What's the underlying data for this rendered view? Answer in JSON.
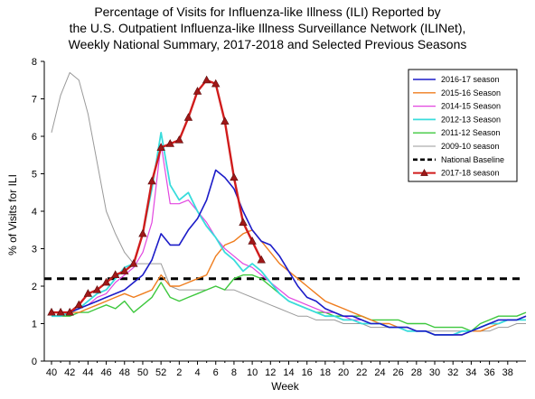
{
  "chart_data": {
    "type": "line",
    "title_lines": [
      "Percentage of Visits for Influenza-like Illness (ILI) Reported by",
      "the U.S. Outpatient Influenza-like Illness Surveillance Network (ILINet),",
      "Weekly National Summary, 2017-2018 and Selected Previous Seasons"
    ],
    "xlabel": "Week",
    "ylabel": "% of Visits for ILI",
    "ylim": [
      0,
      8
    ],
    "yticks": [
      0,
      1,
      2,
      3,
      4,
      5,
      6,
      7,
      8
    ],
    "x_tick_labels": [
      "40",
      "42",
      "44",
      "46",
      "48",
      "50",
      "52",
      "2",
      "4",
      "6",
      "8",
      "10",
      "12",
      "14",
      "16",
      "18",
      "20",
      "22",
      "24",
      "26",
      "28",
      "30",
      "32",
      "34",
      "36",
      "38"
    ],
    "x_point_count": 53,
    "grid": false,
    "legend_position": "top-right",
    "baseline": {
      "name": "National Baseline",
      "value": 2.2,
      "color": "#000000"
    },
    "series": [
      {
        "name": "2016-17 season",
        "color": "#1c1cc8",
        "width": 1.6,
        "markers": false,
        "values": [
          1.3,
          1.3,
          1.3,
          1.4,
          1.5,
          1.6,
          1.7,
          1.8,
          1.9,
          2.1,
          2.3,
          2.7,
          3.4,
          3.1,
          3.1,
          3.5,
          3.8,
          4.3,
          5.1,
          4.9,
          4.6,
          4.0,
          3.5,
          3.2,
          3.1,
          2.8,
          2.4,
          2.0,
          1.7,
          1.6,
          1.4,
          1.3,
          1.2,
          1.2,
          1.1,
          1.0,
          1.0,
          0.9,
          0.9,
          0.9,
          0.8,
          0.8,
          0.7,
          0.7,
          0.7,
          0.7,
          0.8,
          0.9,
          1.0,
          1.1,
          1.1,
          1.1,
          1.2
        ]
      },
      {
        "name": "2015-16 Season",
        "color": "#ef7d1e",
        "width": 1.4,
        "markers": false,
        "values": [
          1.2,
          1.2,
          1.3,
          1.3,
          1.4,
          1.5,
          1.6,
          1.7,
          1.8,
          1.7,
          1.8,
          1.9,
          2.3,
          2.0,
          2.0,
          2.1,
          2.2,
          2.3,
          2.8,
          3.1,
          3.2,
          3.4,
          3.5,
          3.2,
          2.9,
          2.6,
          2.4,
          2.2,
          2.0,
          1.8,
          1.6,
          1.5,
          1.4,
          1.3,
          1.2,
          1.1,
          1.0,
          1.0,
          0.9,
          0.9,
          0.8,
          0.8,
          0.7,
          0.7,
          0.7,
          0.7,
          0.8,
          0.8,
          0.9,
          1.0,
          1.1,
          1.1,
          1.2
        ]
      },
      {
        "name": "2014-15 Season",
        "color": "#e246e0",
        "width": 1.2,
        "markers": false,
        "values": [
          1.3,
          1.3,
          1.3,
          1.4,
          1.5,
          1.7,
          1.8,
          2.1,
          2.3,
          2.5,
          2.9,
          3.7,
          5.8,
          4.2,
          4.2,
          4.3,
          4.0,
          3.7,
          3.3,
          3.0,
          2.8,
          2.6,
          2.5,
          2.3,
          2.1,
          1.9,
          1.7,
          1.6,
          1.5,
          1.4,
          1.3,
          1.3,
          1.2,
          1.1,
          1.1,
          1.0,
          1.0,
          0.9,
          0.9,
          0.8,
          0.8,
          0.8,
          0.7,
          0.7,
          0.7,
          0.8,
          0.8,
          0.9,
          1.0,
          1.0,
          1.1,
          1.1,
          1.1
        ]
      },
      {
        "name": "2012-13 Season",
        "color": "#39dcdc",
        "width": 1.8,
        "markers": false,
        "values": [
          1.2,
          1.2,
          1.3,
          1.4,
          1.6,
          1.8,
          1.9,
          2.2,
          2.5,
          2.6,
          3.4,
          4.6,
          6.1,
          4.7,
          4.3,
          4.5,
          4.0,
          3.6,
          3.3,
          2.9,
          2.7,
          2.4,
          2.6,
          2.4,
          2.1,
          1.8,
          1.6,
          1.5,
          1.4,
          1.3,
          1.2,
          1.2,
          1.1,
          1.1,
          1.0,
          1.0,
          1.0,
          0.9,
          0.9,
          0.8,
          0.8,
          0.8,
          0.7,
          0.7,
          0.7,
          0.8,
          0.8,
          0.9,
          1.0,
          1.0,
          1.1,
          1.1,
          1.1
        ]
      },
      {
        "name": "2011-12 Season",
        "color": "#3ec83e",
        "width": 1.4,
        "markers": false,
        "values": [
          1.2,
          1.2,
          1.2,
          1.3,
          1.3,
          1.4,
          1.5,
          1.4,
          1.6,
          1.3,
          1.5,
          1.7,
          2.1,
          1.7,
          1.6,
          1.7,
          1.8,
          1.9,
          2.0,
          1.9,
          2.2,
          2.3,
          2.3,
          2.2,
          2.0,
          1.8,
          1.6,
          1.5,
          1.4,
          1.3,
          1.3,
          1.2,
          1.2,
          1.2,
          1.2,
          1.1,
          1.1,
          1.1,
          1.1,
          1.0,
          1.0,
          1.0,
          0.9,
          0.9,
          0.9,
          0.9,
          0.8,
          1.0,
          1.1,
          1.2,
          1.2,
          1.2,
          1.3
        ]
      },
      {
        "name": "2009-10 season",
        "color": "#9a9a9a",
        "width": 1.0,
        "markers": false,
        "values": [
          6.1,
          7.1,
          7.7,
          7.5,
          6.6,
          5.3,
          4.0,
          3.4,
          2.9,
          2.6,
          2.6,
          2.6,
          2.6,
          2.0,
          1.9,
          1.9,
          1.9,
          1.9,
          2.0,
          1.9,
          1.9,
          1.8,
          1.7,
          1.6,
          1.5,
          1.4,
          1.3,
          1.2,
          1.2,
          1.1,
          1.1,
          1.1,
          1.0,
          1.0,
          1.0,
          0.9,
          0.9,
          0.9,
          0.9,
          0.8,
          0.8,
          0.8,
          0.8,
          0.8,
          0.8,
          0.8,
          0.8,
          0.8,
          0.8,
          0.9,
          0.9,
          1.0,
          1.0
        ]
      },
      {
        "name": "2017-18 season",
        "color": "#d01c1c",
        "marker_color": "#a01818",
        "width": 2.4,
        "markers": true,
        "values": [
          1.3,
          1.3,
          1.3,
          1.5,
          1.8,
          1.9,
          2.1,
          2.3,
          2.4,
          2.6,
          3.4,
          4.8,
          5.7,
          5.8,
          5.9,
          6.5,
          7.2,
          7.5,
          7.4,
          6.4,
          4.9,
          3.7,
          3.2,
          2.7
        ]
      }
    ]
  }
}
